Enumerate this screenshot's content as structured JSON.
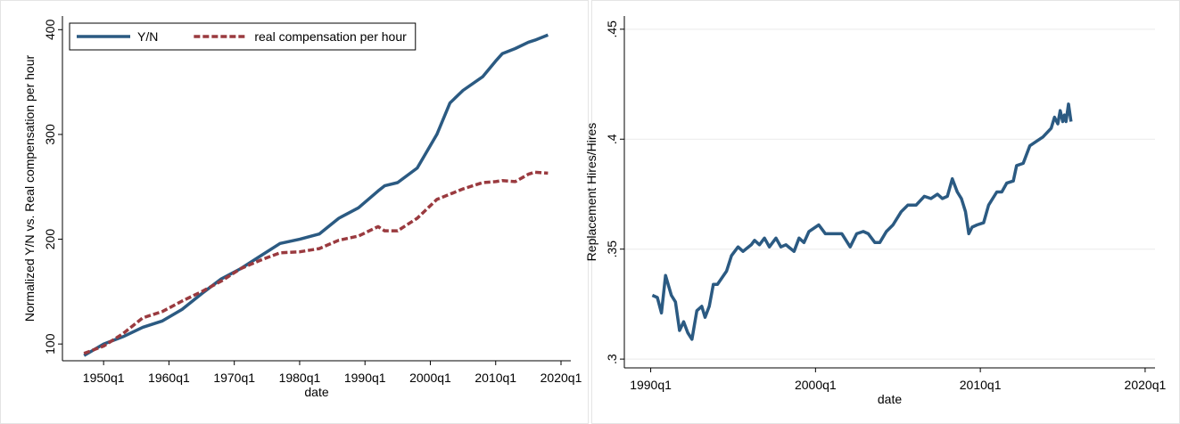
{
  "chart_data": [
    {
      "type": "line",
      "x": [
        1947,
        1950,
        1953,
        1956,
        1959,
        1962,
        1965,
        1968,
        1971,
        1974,
        1977,
        1980,
        1983,
        1986,
        1989,
        1992,
        1993,
        1995,
        1998,
        2001,
        2003,
        2005,
        2008,
        2010,
        2011,
        2013,
        2015,
        2016,
        2018
      ],
      "series": [
        {
          "name": "Y/N",
          "color": "#2b5a82",
          "style": "solid",
          "values": [
            89,
            100,
            107,
            116,
            122,
            133,
            148,
            162,
            172,
            184,
            196,
            200,
            205,
            220,
            230,
            246,
            251,
            254,
            268,
            300,
            330,
            342,
            355,
            370,
            377,
            382,
            388,
            390,
            395
          ]
        },
        {
          "name": "real compensation per hour",
          "color": "#9a3a3f",
          "style": "dashed",
          "values": [
            91,
            98,
            110,
            125,
            131,
            141,
            150,
            160,
            172,
            180,
            187,
            188,
            191,
            199,
            203,
            212,
            208,
            208,
            220,
            238,
            243,
            248,
            254,
            255,
            256,
            255,
            262,
            264,
            263
          ]
        }
      ],
      "xlim": [
        1943.7,
        2021.5
      ],
      "xticks": [
        {
          "value": 1950,
          "label": "1950q1"
        },
        {
          "value": 1960,
          "label": "1960q1"
        },
        {
          "value": 1970,
          "label": "1970q1"
        },
        {
          "value": 1980,
          "label": "1980q1"
        },
        {
          "value": 1990,
          "label": "1990q1"
        },
        {
          "value": 2000,
          "label": "2000q1"
        },
        {
          "value": 2010,
          "label": "2010q1"
        },
        {
          "value": 2020,
          "label": "2020q1"
        }
      ],
      "ylim": [
        84,
        413
      ],
      "yticks": [
        100,
        200,
        300,
        400
      ],
      "x_label": "date",
      "y_label": "Normalized Y/N vs. Real compensation per hour",
      "grid": false,
      "legend": "top-left"
    },
    {
      "type": "line",
      "x": [
        1990.1,
        1990.4,
        1990.65,
        1990.9,
        1991.25,
        1991.5,
        1991.75,
        1992.0,
        1992.25,
        1992.5,
        1992.8,
        1993.1,
        1993.3,
        1993.55,
        1993.8,
        1994.05,
        1994.6,
        1994.9,
        1995.3,
        1995.6,
        1996.1,
        1996.3,
        1996.6,
        1996.9,
        1997.2,
        1997.6,
        1997.9,
        1998.2,
        1998.7,
        1999.0,
        1999.3,
        1999.6,
        2000.2,
        2000.6,
        2001.1,
        2001.6,
        2002.1,
        2002.5,
        2002.9,
        2003.2,
        2003.6,
        2003.9,
        2004.3,
        2004.7,
        2005.2,
        2005.6,
        2006.1,
        2006.6,
        2007.0,
        2007.4,
        2007.7,
        2008.0,
        2008.3,
        2008.6,
        2008.85,
        2009.1,
        2009.3,
        2009.5,
        2009.8,
        2010.2,
        2010.5,
        2011.0,
        2011.3,
        2011.6,
        2012.0,
        2012.2,
        2012.6,
        2013.0,
        2013.4,
        2013.8,
        2014.3,
        2014.5,
        2014.7,
        2014.85,
        2015.0,
        2015.1,
        2015.2,
        2015.35,
        2015.5
      ],
      "series": [
        {
          "color": "#2b5a82",
          "style": "solid",
          "values": [
            0.329,
            0.328,
            0.321,
            0.338,
            0.329,
            0.326,
            0.313,
            0.317,
            0.312,
            0.309,
            0.322,
            0.324,
            0.319,
            0.324,
            0.334,
            0.334,
            0.34,
            0.347,
            0.351,
            0.349,
            0.352,
            0.354,
            0.352,
            0.355,
            0.351,
            0.355,
            0.351,
            0.352,
            0.349,
            0.355,
            0.353,
            0.358,
            0.361,
            0.357,
            0.357,
            0.357,
            0.351,
            0.357,
            0.358,
            0.357,
            0.353,
            0.353,
            0.358,
            0.361,
            0.367,
            0.37,
            0.37,
            0.374,
            0.373,
            0.375,
            0.373,
            0.374,
            0.382,
            0.376,
            0.373,
            0.367,
            0.357,
            0.36,
            0.361,
            0.362,
            0.37,
            0.376,
            0.376,
            0.38,
            0.381,
            0.388,
            0.389,
            0.397,
            0.399,
            0.401,
            0.405,
            0.41,
            0.407,
            0.413,
            0.408,
            0.411,
            0.408,
            0.416,
            0.408
          ]
        }
      ],
      "xlim": [
        1988.4,
        2020.6
      ],
      "xticks": [
        {
          "value": 1990,
          "label": "1990q1"
        },
        {
          "value": 2000,
          "label": "2000q1"
        },
        {
          "value": 2010,
          "label": "2010q1"
        },
        {
          "value": 2020,
          "label": "2020q1"
        }
      ],
      "ylim": [
        0.296,
        0.456
      ],
      "yticks": [
        {
          "value": 0.3,
          "label": ".3"
        },
        {
          "value": 0.35,
          "label": ".35"
        },
        {
          "value": 0.4,
          "label": ".4"
        },
        {
          "value": 0.45,
          "label": ".45"
        }
      ],
      "x_label": "date",
      "y_label": "Replacement Hires/Hires",
      "grid": true
    }
  ]
}
